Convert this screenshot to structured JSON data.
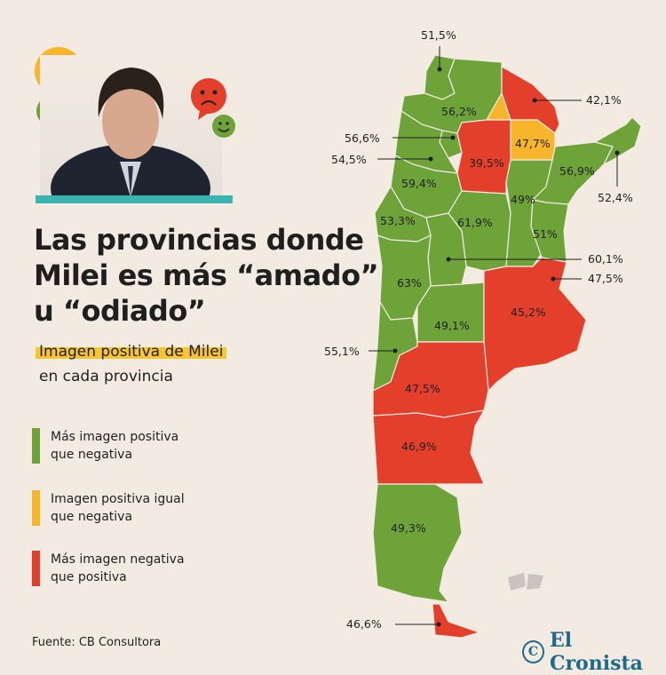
{
  "title_lines": [
    "Las provincias donde",
    "Milei es más “amado”",
    "u “odiado”"
  ],
  "subtitle_highlight": "Imagen positiva de Milei",
  "subtitle_rest": "en cada provincia",
  "colors": {
    "positive": "#6ea33a",
    "equal": "#f6b52b",
    "negative": "#e33f2a",
    "background": "#f3ebe2",
    "accent": "#3ab3b3"
  },
  "legend": [
    {
      "label_lines": [
        "Más imagen positiva",
        "que negativa"
      ],
      "color": "#6ea33a"
    },
    {
      "label_lines": [
        "Imagen positiva igual",
        "que negativa"
      ],
      "color": "#f6b52b"
    },
    {
      "label_lines": [
        "Más imagen negativa",
        "que positiva"
      ],
      "color": "#e33f2a"
    }
  ],
  "map_values": {
    "jujuy": "51,5%",
    "salta": "56,2%",
    "formosa": "42,1%",
    "chaco": "47,7%",
    "santiago": "39,5%",
    "tucuman": "56,6%",
    "catamarca": "54,5%",
    "larioja": "59,4%",
    "sanjuan": "53,3%",
    "cordoba": "61,9%",
    "santafe": "49%",
    "corrientes": "56,9%",
    "misiones": "52,4%",
    "entrerios": "51%",
    "sanluis": "60,1%",
    "mendoza": "63%",
    "buenosaires": "45,2%",
    "caba": "47,5%",
    "lapampa": "49,1%",
    "neuquen": "55,1%",
    "rionegro": "47,5%",
    "chubut": "46,9%",
    "santacruz": "49,3%",
    "tdf": "46,6%"
  },
  "icons": [
    "neutral-face-icon",
    "happy-face-icon",
    "sad-face-icon",
    "happy-face-icon"
  ],
  "footer": "Fuente: CB Consultora",
  "logo": "El Cronista"
}
